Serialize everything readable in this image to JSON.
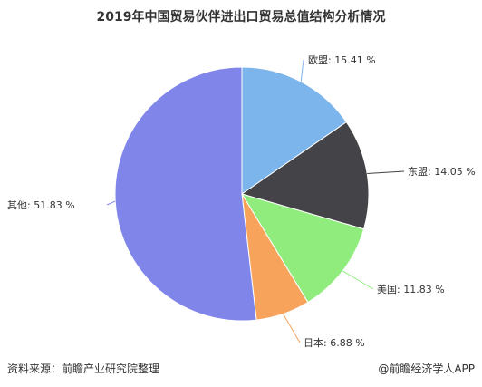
{
  "chart_data": {
    "type": "pie",
    "title": "2019年中国贸易伙伴进出口贸易总值结构分析情况",
    "categories": [
      "欧盟",
      "东盟",
      "美国",
      "日本",
      "其他"
    ],
    "values": [
      15.41,
      14.05,
      11.83,
      6.88,
      51.83
    ],
    "labels": [
      "欧盟: 15.41 %",
      "东盟: 14.05 %",
      "美国: 11.83 %",
      "日本: 6.88 %",
      "其他: 51.83 %"
    ],
    "colors": [
      "#7cb5ec",
      "#434348",
      "#90ed7d",
      "#f7a35c",
      "#8085e9"
    ],
    "legend": "none"
  },
  "footer": {
    "source": "资料来源：前瞻产业研究院整理",
    "brand": "@前瞻经济学人APP"
  }
}
